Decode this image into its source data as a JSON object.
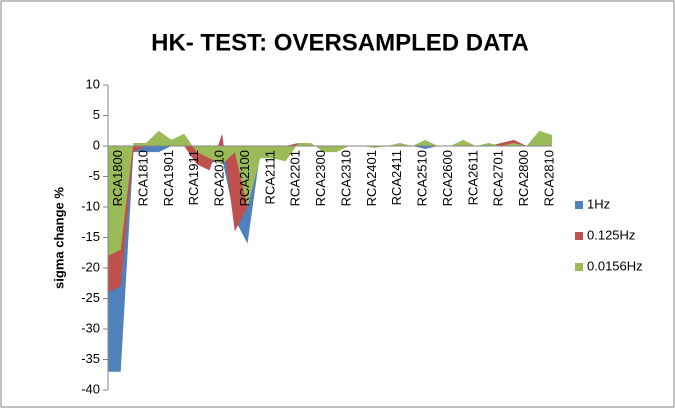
{
  "chart_data": {
    "type": "area",
    "title": "HK- TEST: OVERSAMPLED DATA",
    "y_label": "sigma change %",
    "categories": [
      null,
      "RCA1800",
      null,
      "RCA1810",
      null,
      "RCA1901",
      null,
      "RCA1911",
      null,
      "RCA2010",
      null,
      "RCA2100",
      null,
      "RCA2111",
      null,
      "RCA2201",
      null,
      "RCA2300",
      null,
      "RCA2310",
      null,
      "RCA2401",
      null,
      "RCA2411",
      null,
      "RCA2510",
      null,
      "RCA2600",
      null,
      "RCA2611",
      null,
      "RCA2701",
      null,
      "RCA2800",
      null,
      "RCA2810"
    ],
    "series": [
      {
        "name": "1Hz",
        "color": "#4f81bd",
        "values": [
          -37,
          -37,
          -1,
          -1,
          -1,
          0,
          0,
          -1,
          -3,
          -2,
          -12,
          -16,
          -1,
          -1,
          0,
          0,
          0,
          0,
          0,
          0,
          0,
          0,
          0,
          0,
          0,
          -0.5,
          0,
          0,
          0,
          0,
          0,
          0,
          0,
          0,
          0,
          0
        ]
      },
      {
        "name": "0.125Hz",
        "color": "#c0504d",
        "values": [
          -24,
          -23,
          -1,
          0,
          0,
          0,
          0,
          -3,
          -4,
          2,
          -14,
          -10,
          -1,
          -1,
          0,
          0.5,
          0,
          0,
          0,
          0,
          0,
          0,
          0,
          0,
          0,
          0,
          0,
          0,
          0,
          0,
          0,
          0.5,
          1,
          0,
          0,
          0
        ]
      },
      {
        "name": "0.0156Hz",
        "color": "#9bbb59",
        "values": [
          -18,
          -17,
          0.5,
          0.5,
          2.5,
          1,
          2,
          -1,
          -2,
          -3,
          -1,
          -10,
          -2,
          -2,
          -2.5,
          0.5,
          0.5,
          -1,
          -1,
          0,
          0,
          -0.3,
          0,
          0.5,
          0,
          1,
          0,
          0,
          1,
          0,
          0.5,
          0,
          0.5,
          0,
          2.5,
          1.8
        ]
      }
    ],
    "ylim": [
      -40,
      10
    ],
    "yticks": [
      -40,
      -35,
      -30,
      -25,
      -20,
      -15,
      -10,
      -5,
      0,
      5,
      10
    ],
    "grid": false,
    "legend": "right"
  }
}
